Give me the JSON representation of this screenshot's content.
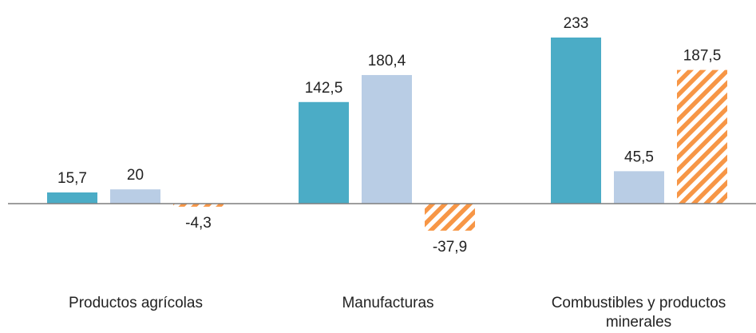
{
  "chart_data": {
    "type": "bar",
    "categories": [
      "Productos agrícolas",
      "Manufacturas",
      "Combustibles y productos minerales"
    ],
    "series": [
      {
        "values": [
          15.7,
          142.5,
          233
        ],
        "labels": [
          "15,7",
          "142,5",
          "233"
        ],
        "color": "#4BACC6",
        "pattern": "solid"
      },
      {
        "values": [
          20,
          180.4,
          45.5
        ],
        "labels": [
          "20",
          "180,4",
          "45,5"
        ],
        "color": "#B9CDE5",
        "pattern": "solid"
      },
      {
        "values": [
          -4.3,
          -37.9,
          187.5
        ],
        "labels": [
          "-4,3",
          "-37,9",
          "187,5"
        ],
        "color": "#F79646",
        "pattern": "hatched"
      }
    ],
    "axis_color": "#7F7F7F",
    "grid": false,
    "legend": "none",
    "title": "",
    "xlabel": "",
    "ylabel": ""
  }
}
